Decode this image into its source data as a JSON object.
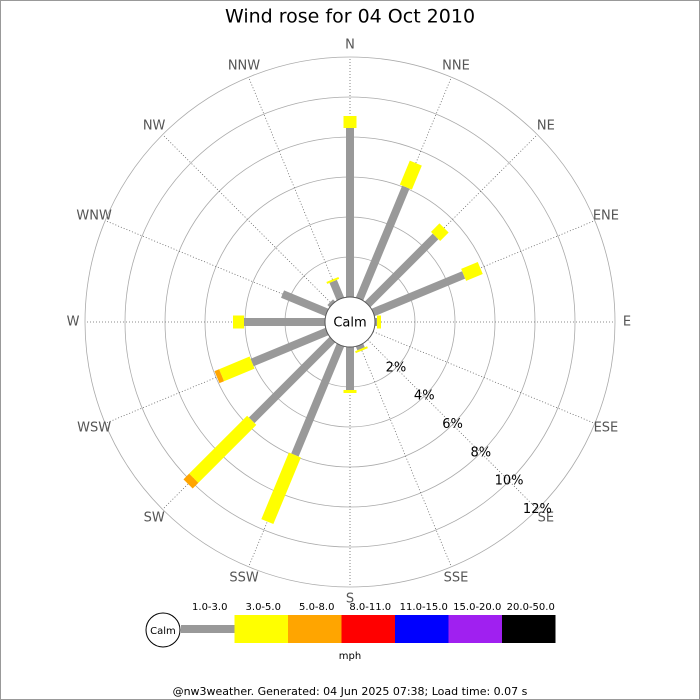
{
  "chart_data": {
    "type": "windrose",
    "title": "Wind rose for 04 Oct 2010",
    "calm_label": "Calm",
    "categories": [
      "N",
      "NNE",
      "NE",
      "ENE",
      "E",
      "ESE",
      "SE",
      "SSE",
      "S",
      "SSW",
      "SW",
      "WSW",
      "W",
      "WNW",
      "NW",
      "NNW"
    ],
    "series": [
      {
        "name": "1.0-3.0",
        "color": "#999999",
        "values": [
          8.45,
          6.05,
          4.8,
          4.9,
          0.1,
          0,
          0,
          0.2,
          2.15,
          5.95,
          5.7,
          4.05,
          4.05,
          2.4,
          0.15,
          0.95
        ]
      },
      {
        "name": "3.0-5.0",
        "color": "#ffff00",
        "values": [
          0.6,
          1.3,
          0.6,
          0.9,
          0.2,
          0,
          0,
          0.1,
          0.15,
          3.6,
          4.1,
          1.65,
          0.55,
          0,
          0,
          0.1
        ]
      },
      {
        "name": "5.0-8.0",
        "color": "#ffa500",
        "values": [
          0,
          0,
          0,
          0,
          0,
          0,
          0,
          0,
          0,
          0,
          0.4,
          0.25,
          0,
          0,
          0,
          0
        ]
      },
      {
        "name": "8.0-11.0",
        "color": "#ff0000",
        "values": [
          0,
          0,
          0,
          0,
          0,
          0,
          0,
          0,
          0,
          0,
          0,
          0,
          0,
          0,
          0,
          0
        ]
      },
      {
        "name": "11.0-15.0",
        "color": "#0000ff",
        "values": [
          0,
          0,
          0,
          0,
          0,
          0,
          0,
          0,
          0,
          0,
          0,
          0,
          0,
          0,
          0,
          0
        ]
      },
      {
        "name": "15.0-20.0",
        "color": "#a020f0",
        "values": [
          0,
          0,
          0,
          0,
          0,
          0,
          0,
          0,
          0,
          0,
          0,
          0,
          0,
          0,
          0,
          0
        ]
      },
      {
        "name": "20.0-50.0",
        "color": "#000000",
        "values": [
          0,
          0,
          0,
          0,
          0,
          0,
          0,
          0,
          0,
          0,
          0,
          0,
          0,
          0,
          0,
          0
        ]
      }
    ],
    "rlim": [
      0,
      12
    ],
    "rticks": [
      {
        "value": 2,
        "label": "2%"
      },
      {
        "value": 4,
        "label": "4%"
      },
      {
        "value": 6,
        "label": "6%"
      },
      {
        "value": 8,
        "label": "8%"
      },
      {
        "value": 10,
        "label": "10%"
      },
      {
        "value": 12,
        "label": "12%"
      }
    ],
    "legend_unit": "mph",
    "footer": "@nw3weather. Generated: 04 Jun 2025 07:38; Load time: 0.07 s"
  }
}
